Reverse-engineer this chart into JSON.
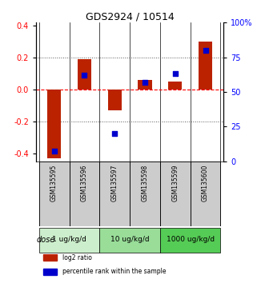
{
  "title": "GDS2924 / 10514",
  "categories": [
    "GSM135595",
    "GSM135596",
    "GSM135597",
    "GSM135598",
    "GSM135599",
    "GSM135600"
  ],
  "log2_ratio": [
    -0.43,
    0.19,
    -0.13,
    0.06,
    0.05,
    0.3
  ],
  "percentile_rank": [
    7,
    62,
    20,
    57,
    63,
    80
  ],
  "ylim_left": [
    -0.45,
    0.42
  ],
  "ylim_right": [
    0,
    100
  ],
  "yticks_left": [
    -0.4,
    -0.2,
    0.0,
    0.2,
    0.4
  ],
  "yticks_right": [
    0,
    25,
    50,
    75,
    100
  ],
  "ytick_labels_right": [
    "0",
    "25",
    "50",
    "75",
    "100%"
  ],
  "bar_color": "#bb2200",
  "dot_color": "#0000cc",
  "zero_line_color": "#ff0000",
  "dotted_line_color": "#555555",
  "dose_groups": [
    {
      "label": "1 ug/kg/d",
      "color": "#cceecc"
    },
    {
      "label": "10 ug/kg/d",
      "color": "#99dd99"
    },
    {
      "label": "1000 ug/kg/d",
      "color": "#55cc55"
    }
  ],
  "dose_label": "dose",
  "legend_items": [
    {
      "label": "log2 ratio",
      "color": "#bb2200"
    },
    {
      "label": "percentile rank within the sample",
      "color": "#0000cc"
    }
  ],
  "background_color": "#ffffff",
  "plot_bg_color": "#ffffff",
  "sample_box_color": "#cccccc"
}
